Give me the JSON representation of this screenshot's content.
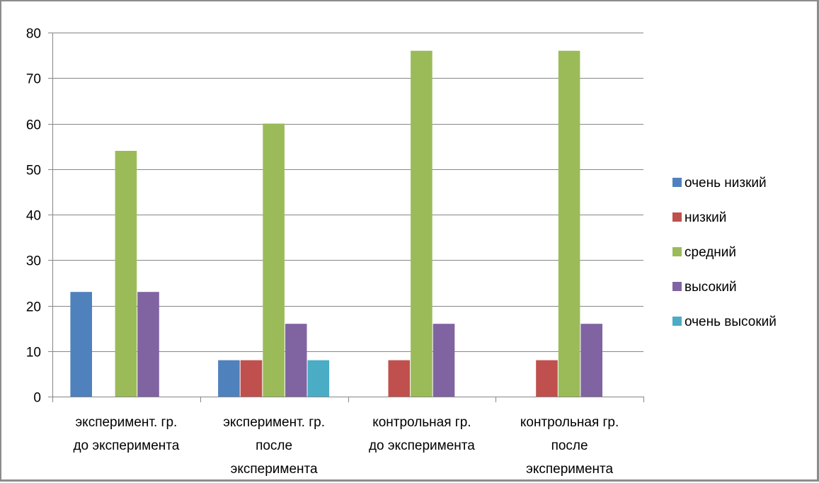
{
  "chart_data": {
    "type": "bar",
    "title": "",
    "xlabel": "",
    "ylabel": "",
    "ylim": [
      0,
      80
    ],
    "yticks": [
      0,
      10,
      20,
      30,
      40,
      50,
      60,
      70,
      80
    ],
    "grid": true,
    "legend_position": "right",
    "categories": [
      [
        "эксперимент. гр.",
        "до эксперимента"
      ],
      [
        "эксперимент. гр.",
        "после",
        "эксперимента"
      ],
      [
        "контрольная гр.",
        "до эксперимента"
      ],
      [
        "контрольная гр.",
        "после",
        "эксперимента"
      ]
    ],
    "series": [
      {
        "name": "очень низкий",
        "color": "#4f81bd",
        "values": [
          23,
          8,
          0,
          0
        ]
      },
      {
        "name": "низкий",
        "color": "#c0504d",
        "values": [
          0,
          8,
          8,
          8
        ]
      },
      {
        "name": "средний",
        "color": "#9bbb59",
        "values": [
          54,
          60,
          76,
          76
        ]
      },
      {
        "name": "высокий",
        "color": "#8064a2",
        "values": [
          23,
          16,
          16,
          16
        ]
      },
      {
        "name": "очень высокий",
        "color": "#4bacc6",
        "values": [
          0,
          8,
          0,
          0
        ]
      }
    ]
  }
}
